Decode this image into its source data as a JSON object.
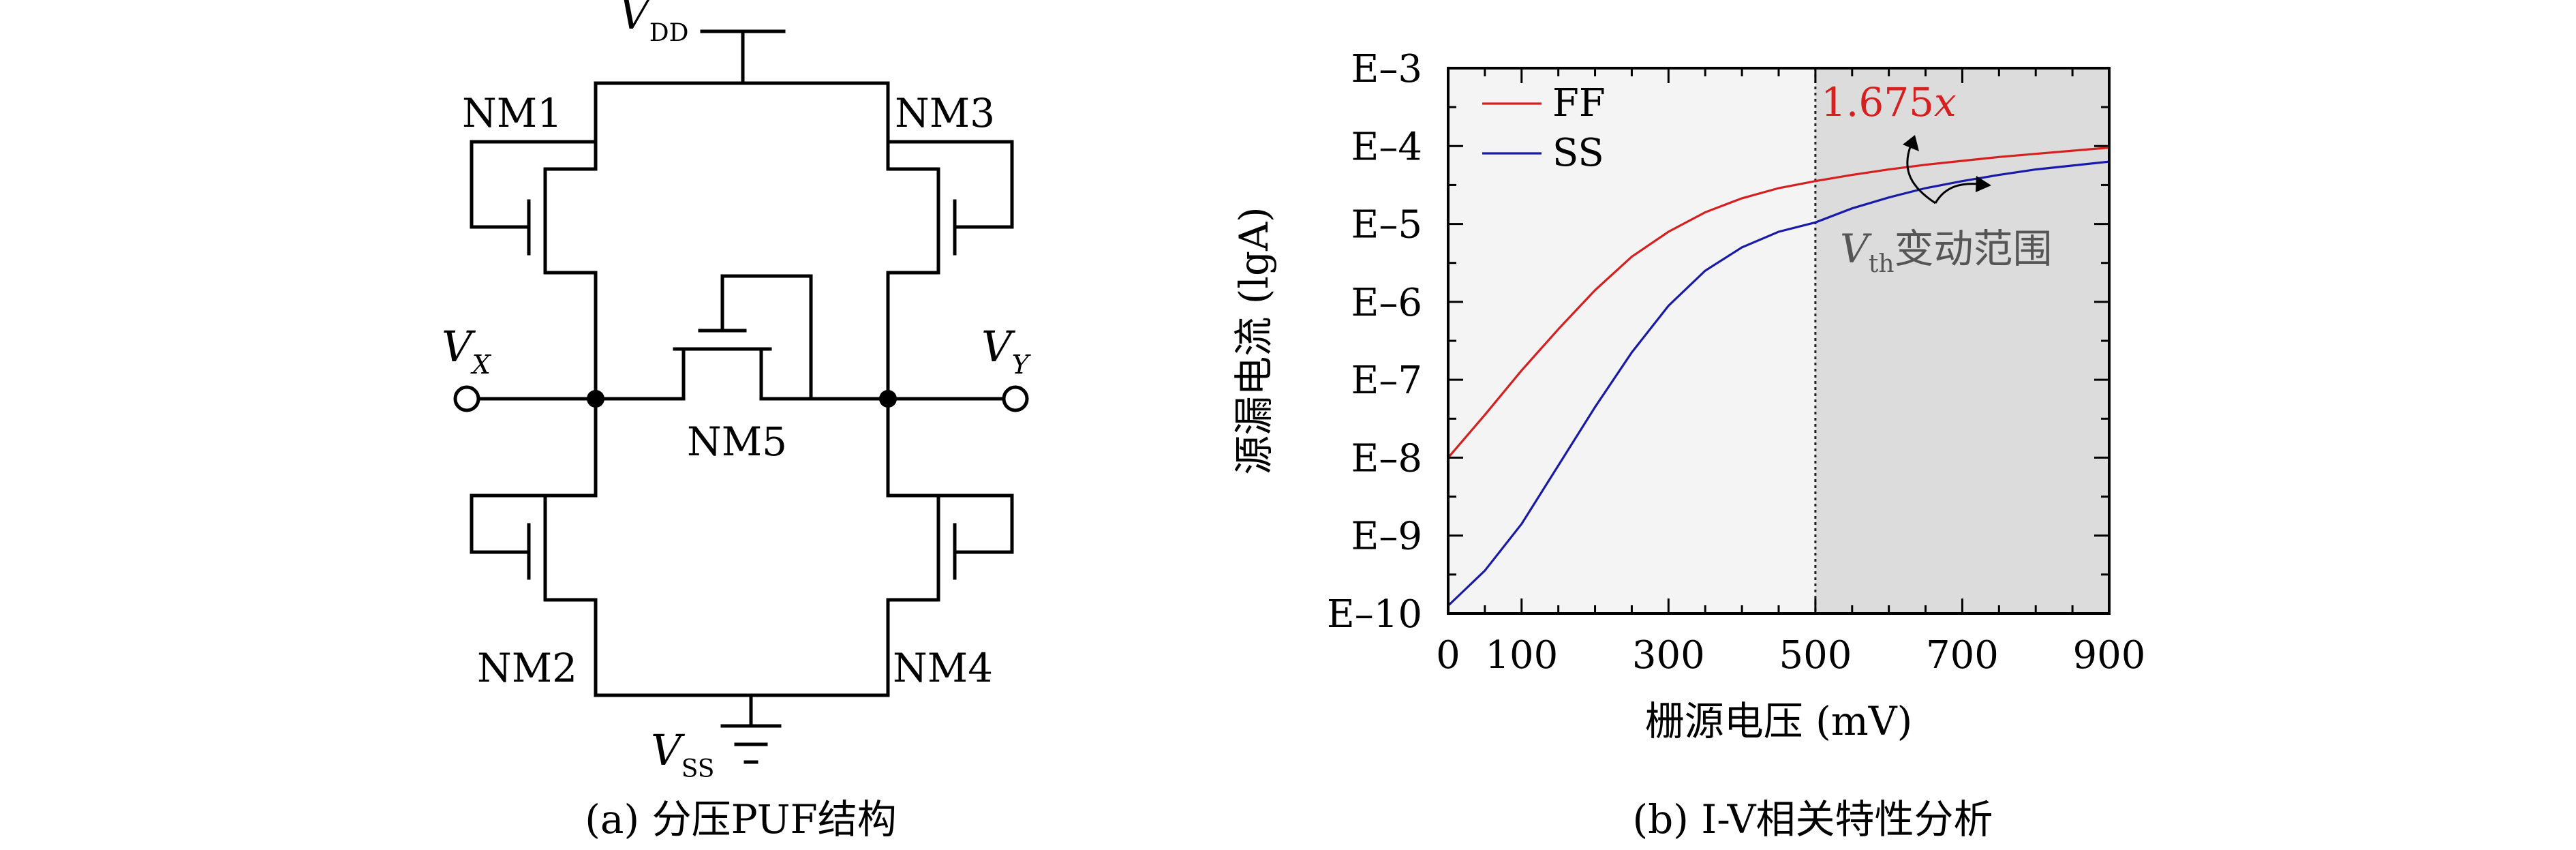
{
  "circuit": {
    "caption": "(a) 分压PUF结构",
    "vdd": {
      "main": "V",
      "sub": "DD"
    },
    "vss": {
      "main": "V",
      "sub": "SS"
    },
    "vx": {
      "main": "V",
      "sub": "X"
    },
    "vy": {
      "main": "V",
      "sub": "Y"
    },
    "nm1": "NM1",
    "nm2": "NM2",
    "nm3": "NM3",
    "nm4": "NM4",
    "nm5": "NM5"
  },
  "chart_data": {
    "type": "line",
    "caption": "(b) I-V相关特性分析",
    "xlabel": "栅源电压 (mV)",
    "ylabel": "源漏电流 (lgA)",
    "xlim": [
      0,
      900
    ],
    "ylim": [
      -10,
      -3
    ],
    "x_ticks": [
      "0",
      "100",
      "300",
      "500",
      "700",
      "900"
    ],
    "x_tick_values": [
      0,
      100,
      300,
      500,
      700,
      900
    ],
    "y_ticks": [
      "E–3",
      "E–4",
      "E–5",
      "E–6",
      "E–7",
      "E–8",
      "E–9",
      "E–10"
    ],
    "y_tick_values": [
      -3,
      -4,
      -5,
      -6,
      -7,
      -8,
      -9,
      -10
    ],
    "shaded_region": {
      "x_from": 500,
      "x_to": 900
    },
    "vertical_line_x": 500,
    "legend_position": "top-left",
    "series": [
      {
        "name": "FF",
        "color": "#d62020",
        "x": [
          0,
          50,
          100,
          150,
          200,
          250,
          300,
          350,
          400,
          450,
          500,
          550,
          600,
          650,
          700,
          750,
          800,
          850,
          900
        ],
        "y": [
          -8.0,
          -7.45,
          -6.88,
          -6.35,
          -5.85,
          -5.42,
          -5.1,
          -4.85,
          -4.67,
          -4.54,
          -4.45,
          -4.37,
          -4.3,
          -4.24,
          -4.19,
          -4.14,
          -4.1,
          -4.06,
          -4.02
        ]
      },
      {
        "name": "SS",
        "color": "#1a1aa8",
        "x": [
          0,
          50,
          100,
          150,
          200,
          250,
          300,
          350,
          400,
          450,
          500,
          550,
          600,
          650,
          700,
          750,
          800,
          850,
          900
        ],
        "y": [
          -9.9,
          -9.45,
          -8.85,
          -8.1,
          -7.35,
          -6.65,
          -6.05,
          -5.6,
          -5.3,
          -5.1,
          -4.98,
          -4.8,
          -4.66,
          -4.54,
          -4.45,
          -4.37,
          -4.3,
          -4.25,
          -4.2
        ]
      }
    ],
    "annotations": {
      "ratio": {
        "text": "1.675",
        "italic_var": "x",
        "color": "#d62020"
      },
      "vth": {
        "main": "V",
        "sub": "th",
        "rest": "变动范围"
      }
    }
  }
}
